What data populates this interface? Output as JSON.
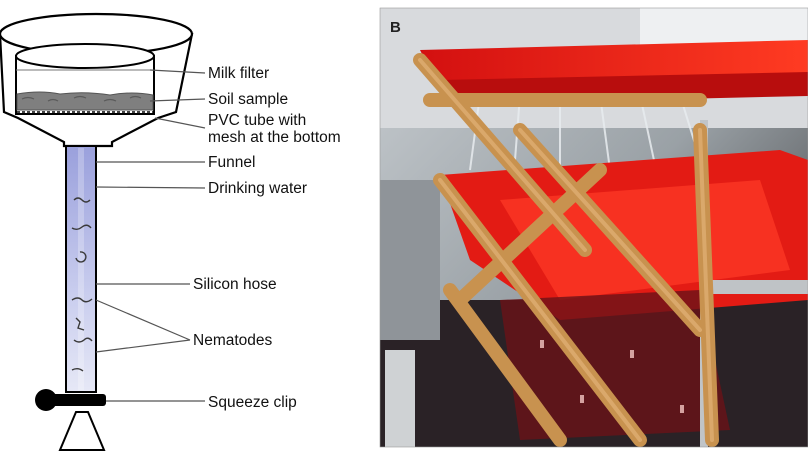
{
  "panel_a": {
    "labels": {
      "milk_filter": "Milk filter",
      "soil_sample": "Soil sample",
      "pvc_tube_line1": "PVC tube with",
      "pvc_tube_line2": "mesh at the bottom",
      "funnel": "Funnel",
      "drinking_water": "Drinking water",
      "silicon_hose": "Silicon hose",
      "nematodes": "Nematodes",
      "squeeze_clip": "Squeeze clip"
    }
  },
  "panel_b": {
    "letter": "B"
  }
}
